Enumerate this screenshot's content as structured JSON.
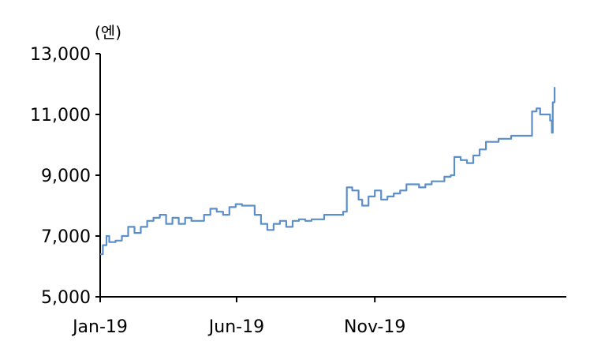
{
  "chart_data": {
    "type": "line",
    "unit_label": "(엔)",
    "y_ticks": [
      "13,000",
      "11,000",
      "9,000",
      "7,000",
      "5,000"
    ],
    "y_tick_values": [
      13000,
      11000,
      9000,
      7000,
      5000
    ],
    "ylim": [
      5000,
      13000
    ],
    "x_ticks": [
      "Jan-19",
      "Jun-19",
      "Nov-19"
    ],
    "x_tick_dates": [
      "2019-01-01",
      "2019-06-01",
      "2019-11-01"
    ],
    "xlim": [
      "2019-01-01",
      "2020-05-31"
    ],
    "grid": false,
    "series": [
      {
        "color": "#5b8fc9",
        "points": [
          [
            "2019-01-01",
            6400
          ],
          [
            "2019-01-04",
            6700
          ],
          [
            "2019-01-08",
            7000
          ],
          [
            "2019-01-11",
            6800
          ],
          [
            "2019-01-18",
            6850
          ],
          [
            "2019-01-25",
            7000
          ],
          [
            "2019-02-01",
            7300
          ],
          [
            "2019-02-08",
            7100
          ],
          [
            "2019-02-15",
            7300
          ],
          [
            "2019-02-22",
            7500
          ],
          [
            "2019-03-01",
            7600
          ],
          [
            "2019-03-08",
            7700
          ],
          [
            "2019-03-15",
            7400
          ],
          [
            "2019-03-22",
            7600
          ],
          [
            "2019-03-29",
            7400
          ],
          [
            "2019-04-05",
            7600
          ],
          [
            "2019-04-12",
            7500
          ],
          [
            "2019-04-19",
            7500
          ],
          [
            "2019-04-26",
            7700
          ],
          [
            "2019-05-03",
            7900
          ],
          [
            "2019-05-10",
            7800
          ],
          [
            "2019-05-17",
            7700
          ],
          [
            "2019-05-24",
            7950
          ],
          [
            "2019-05-31",
            8050
          ],
          [
            "2019-06-07",
            8000
          ],
          [
            "2019-06-14",
            8000
          ],
          [
            "2019-06-21",
            7700
          ],
          [
            "2019-06-28",
            7400
          ],
          [
            "2019-07-05",
            7200
          ],
          [
            "2019-07-12",
            7400
          ],
          [
            "2019-07-19",
            7500
          ],
          [
            "2019-07-26",
            7300
          ],
          [
            "2019-08-02",
            7500
          ],
          [
            "2019-08-09",
            7550
          ],
          [
            "2019-08-16",
            7500
          ],
          [
            "2019-08-23",
            7550
          ],
          [
            "2019-08-30",
            7550
          ],
          [
            "2019-09-06",
            7700
          ],
          [
            "2019-09-13",
            7700
          ],
          [
            "2019-09-20",
            7700
          ],
          [
            "2019-09-27",
            7800
          ],
          [
            "2019-10-01",
            8600
          ],
          [
            "2019-10-07",
            8500
          ],
          [
            "2019-10-14",
            8200
          ],
          [
            "2019-10-18",
            8000
          ],
          [
            "2019-10-25",
            8300
          ],
          [
            "2019-11-01",
            8500
          ],
          [
            "2019-11-08",
            8200
          ],
          [
            "2019-11-15",
            8300
          ],
          [
            "2019-11-22",
            8400
          ],
          [
            "2019-11-29",
            8500
          ],
          [
            "2019-12-06",
            8700
          ],
          [
            "2019-12-13",
            8700
          ],
          [
            "2019-12-20",
            8600
          ],
          [
            "2019-12-27",
            8700
          ],
          [
            "2020-01-03",
            8800
          ],
          [
            "2020-01-10",
            8800
          ],
          [
            "2020-01-17",
            8950
          ],
          [
            "2020-01-24",
            9000
          ],
          [
            "2020-01-28",
            9600
          ],
          [
            "2020-02-04",
            9500
          ],
          [
            "2020-02-11",
            9400
          ],
          [
            "2020-02-18",
            9650
          ],
          [
            "2020-02-25",
            9850
          ],
          [
            "2020-03-03",
            10100
          ],
          [
            "2020-03-10",
            10100
          ],
          [
            "2020-03-17",
            10200
          ],
          [
            "2020-03-24",
            10200
          ],
          [
            "2020-03-31",
            10300
          ],
          [
            "2020-04-07",
            10300
          ],
          [
            "2020-04-14",
            10300
          ],
          [
            "2020-04-20",
            10300
          ],
          [
            "2020-04-23",
            11100
          ],
          [
            "2020-04-28",
            11200
          ],
          [
            "2020-05-02",
            11000
          ],
          [
            "2020-05-08",
            11000
          ],
          [
            "2020-05-13",
            10800
          ],
          [
            "2020-05-15",
            10400
          ],
          [
            "2020-05-16",
            11400
          ],
          [
            "2020-05-18",
            11900
          ]
        ]
      }
    ]
  }
}
